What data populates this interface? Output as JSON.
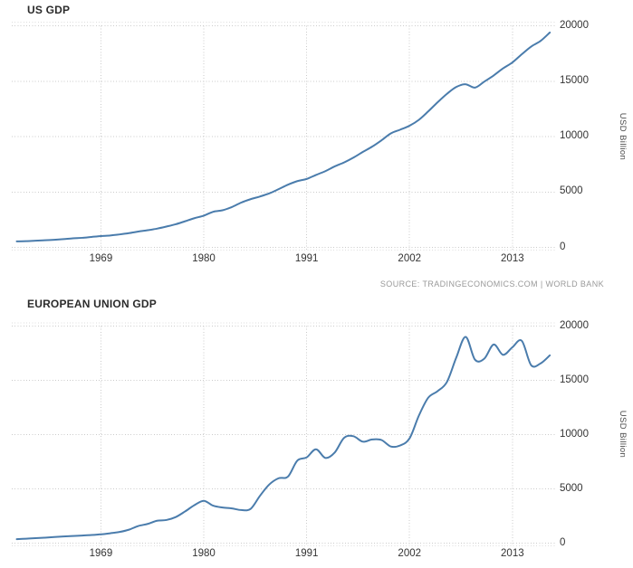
{
  "page": {
    "background": "#ffffff",
    "grid_color": "#cbcbcb",
    "border_color": "#dedede",
    "text_color": "#333333"
  },
  "source_note": "SOURCE: TRADINGECONOMICS.COM | WORLD BANK",
  "chart_data": [
    {
      "type": "line",
      "title": "US GDP",
      "ylabel": "USD Billion",
      "line_color": "#4a7cac",
      "grid": "dotted",
      "legend": "none",
      "x_tick_labels": [
        "1969",
        "1980",
        "1991",
        "2002",
        "2013"
      ],
      "y_tick_labels": [
        "0",
        "5000",
        "10000",
        "15000",
        "20000"
      ],
      "ylim": [
        0,
        20000
      ],
      "xlim": [
        1960,
        2017.6
      ],
      "years": [
        1960,
        1961,
        1962,
        1963,
        1964,
        1965,
        1966,
        1967,
        1968,
        1969,
        1970,
        1971,
        1972,
        1973,
        1974,
        1975,
        1976,
        1977,
        1978,
        1979,
        1980,
        1981,
        1982,
        1983,
        1984,
        1985,
        1986,
        1987,
        1988,
        1989,
        1990,
        1991,
        1992,
        1993,
        1994,
        1995,
        1996,
        1997,
        1998,
        1999,
        2000,
        2001,
        2002,
        2003,
        2004,
        2005,
        2006,
        2007,
        2008,
        2009,
        2010,
        2011,
        2012,
        2013,
        2014,
        2015,
        2016,
        2017
      ],
      "values": [
        543,
        563,
        605,
        639,
        686,
        744,
        815,
        862,
        943,
        1020,
        1076,
        1168,
        1282,
        1429,
        1549,
        1689,
        1878,
        2086,
        2357,
        2632,
        2863,
        3211,
        3345,
        3638,
        4041,
        4347,
        4590,
        4870,
        5253,
        5658,
        5980,
        6174,
        6539,
        6879,
        7309,
        7664,
        8100,
        8609,
        9089,
        9661,
        10285,
        10622,
        10978,
        11511,
        12275,
        13094,
        13856,
        14478,
        14719,
        14419,
        14964,
        15518,
        16155,
        16692,
        17428,
        18121,
        18624,
        19391
      ]
    },
    {
      "type": "line",
      "title": "EUROPEAN UNION GDP",
      "ylabel": "USD Billion",
      "line_color": "#4a7cac",
      "grid": "dotted",
      "legend": "none",
      "x_tick_labels": [
        "1969",
        "1980",
        "1991",
        "2002",
        "2013"
      ],
      "y_tick_labels": [
        "0",
        "5000",
        "10000",
        "15000",
        "20000"
      ],
      "ylim": [
        0,
        20000
      ],
      "xlim": [
        1960,
        2017.6
      ],
      "years": [
        1960,
        1961,
        1962,
        1963,
        1964,
        1965,
        1966,
        1967,
        1968,
        1969,
        1970,
        1971,
        1972,
        1973,
        1974,
        1975,
        1976,
        1977,
        1978,
        1979,
        1980,
        1981,
        1982,
        1983,
        1984,
        1985,
        1986,
        1987,
        1988,
        1989,
        1990,
        1991,
        1992,
        1993,
        1994,
        1995,
        1996,
        1997,
        1998,
        1999,
        2000,
        2001,
        2002,
        2003,
        2004,
        2005,
        2006,
        2007,
        2008,
        2009,
        2010,
        2011,
        2012,
        2013,
        2014,
        2015,
        2016,
        2017
      ],
      "values": [
        365,
        410,
        455,
        505,
        560,
        610,
        655,
        700,
        745,
        810,
        910,
        1030,
        1240,
        1580,
        1770,
        2060,
        2130,
        2400,
        2920,
        3500,
        3900,
        3450,
        3280,
        3200,
        3050,
        3150,
        4350,
        5400,
        5980,
        6130,
        7600,
        7900,
        8650,
        7850,
        8350,
        9700,
        9850,
        9350,
        9550,
        9500,
        8900,
        9000,
        9650,
        11750,
        13400,
        14000,
        14850,
        17100,
        19000,
        16900,
        17000,
        18300,
        17350,
        18050,
        18640,
        16400,
        16550,
        17300
      ]
    }
  ]
}
